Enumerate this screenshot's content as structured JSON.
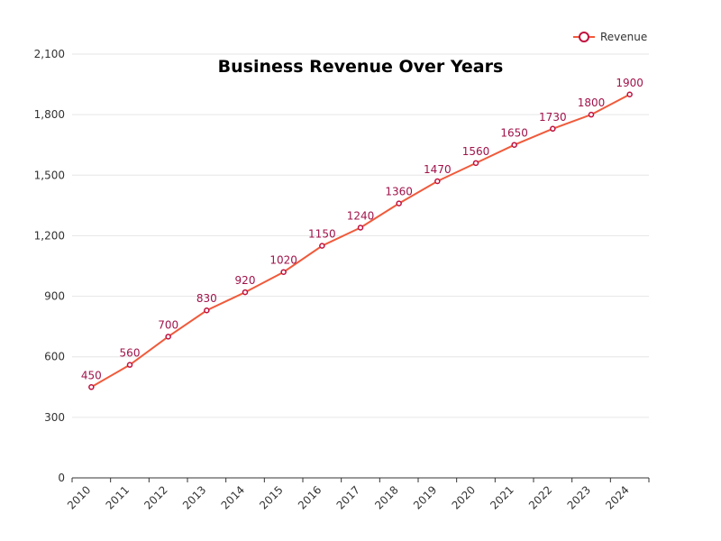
{
  "chart_data": {
    "type": "line",
    "title": "Business Revenue Over Years",
    "xlabel": "",
    "ylabel": "",
    "categories": [
      "2010",
      "2011",
      "2012",
      "2013",
      "2014",
      "2015",
      "2016",
      "2017",
      "2018",
      "2019",
      "2020",
      "2021",
      "2022",
      "2023",
      "2024"
    ],
    "series": [
      {
        "name": "Revenue",
        "values": [
          450,
          560,
          700,
          830,
          920,
          1020,
          1150,
          1240,
          1360,
          1470,
          1560,
          1650,
          1730,
          1800,
          1900
        ]
      }
    ],
    "ylim": [
      0,
      2100
    ],
    "yticks": [
      0,
      300,
      600,
      900,
      1200,
      1500,
      1800,
      2100
    ],
    "ytick_labels": [
      "0",
      "300",
      "600",
      "900",
      "1,200",
      "1,500",
      "1,800",
      "2,100"
    ],
    "grid": true,
    "legend_position": "top-right",
    "colors": {
      "line": "#f05a3b",
      "marker": "#c0113f",
      "label": "#a0134a",
      "grid": "#e6e6e6",
      "axis": "#333333"
    }
  }
}
